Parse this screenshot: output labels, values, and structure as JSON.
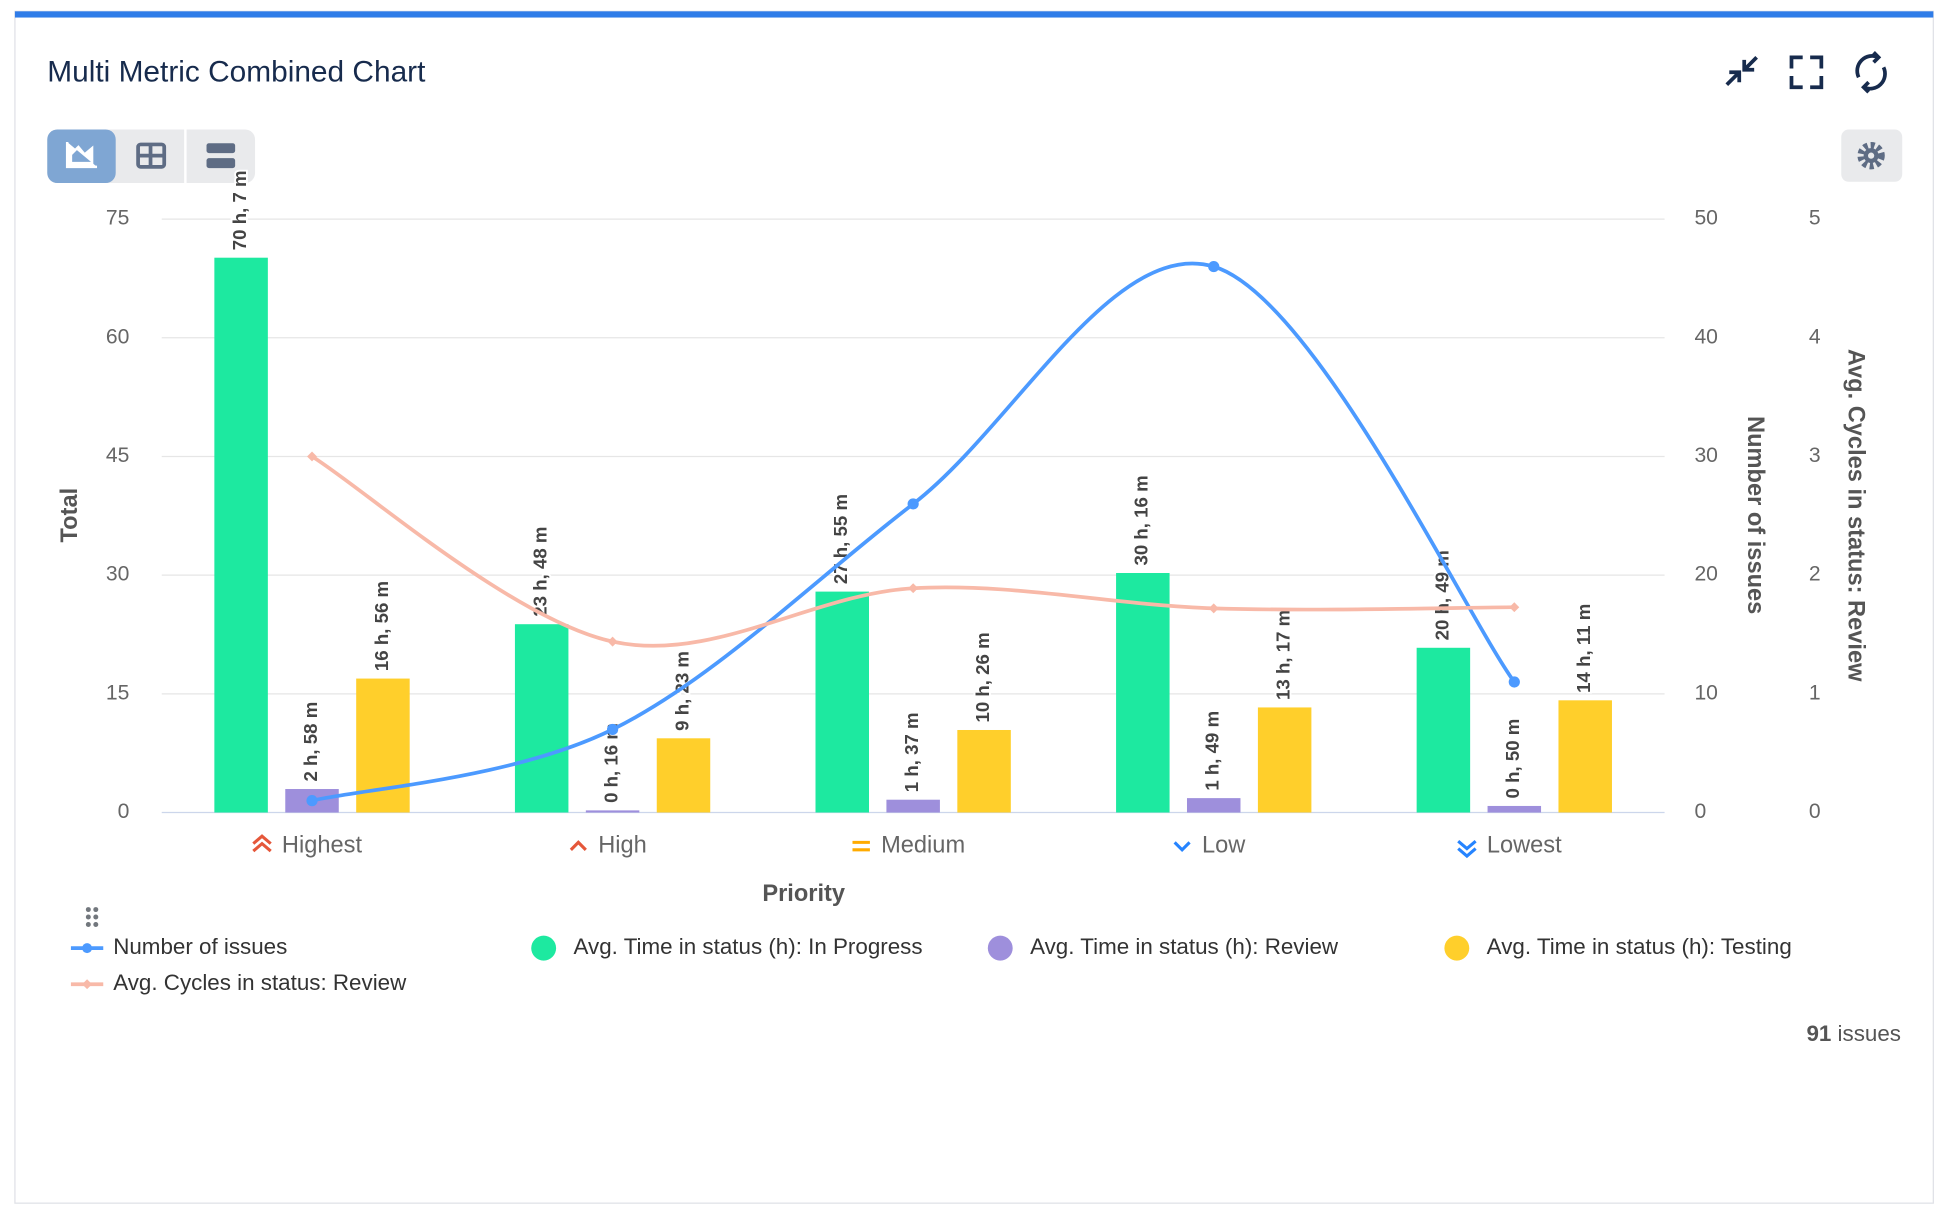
{
  "chart_data": {
    "type": "combo",
    "title": "Multi Metric Combined Chart",
    "x_label": "Priority",
    "y_label": "Total",
    "y2_label": "Number of issues",
    "y3_label": "Avg. Cycles in status: Review",
    "categories": [
      "Highest",
      "High",
      "Medium",
      "Low",
      "Lowest"
    ],
    "ylim": [
      0,
      75
    ],
    "yticks": [
      0,
      15,
      30,
      45,
      60,
      75
    ],
    "y2lim": [
      0,
      50
    ],
    "y2ticks": [
      0,
      10,
      20,
      30,
      40,
      50
    ],
    "y3lim": [
      0,
      5
    ],
    "y3ticks": [
      0,
      1,
      2,
      3,
      4,
      5
    ],
    "grid": true,
    "series": [
      {
        "name": "Number of issues",
        "type": "line",
        "axis": "y2",
        "color": "#4c9aff",
        "values": [
          1,
          7,
          26,
          46,
          11
        ]
      },
      {
        "name": "Avg. Time in status (h): In Progress",
        "type": "bar",
        "color": "#1de9a0",
        "values": [
          70.12,
          23.8,
          27.92,
          30.27,
          20.82
        ],
        "value_labels": [
          "70 h, 7 m",
          "23 h, 48 m",
          "27 h, 55 m",
          "30 h, 16 m",
          "20 h, 49 m"
        ]
      },
      {
        "name": "Avg. Time in status (h): Review",
        "type": "bar",
        "color": "#9e8fdc",
        "values": [
          2.97,
          0.27,
          1.62,
          1.82,
          0.83
        ],
        "value_labels": [
          "2 h, 58 m",
          "0 h, 16 m",
          "1 h, 37 m",
          "1 h, 49 m",
          "0 h, 50 m"
        ]
      },
      {
        "name": "Avg. Time in status (h): Testing",
        "type": "bar",
        "color": "#ffcf2b",
        "values": [
          16.93,
          9.38,
          10.43,
          13.28,
          14.18
        ],
        "value_labels": [
          "16 h, 56 m",
          "9 h, 23 m",
          "10 h, 26 m",
          "13 h, 17 m",
          "14 h, 11 m"
        ]
      },
      {
        "name": "Avg. Cycles in status: Review",
        "type": "line",
        "axis": "y3",
        "color": "#f8b9a8",
        "values": [
          3,
          1.44,
          1.89,
          1.72,
          1.73
        ]
      }
    ],
    "issues_count": 91,
    "issues_label": "issues"
  }
}
